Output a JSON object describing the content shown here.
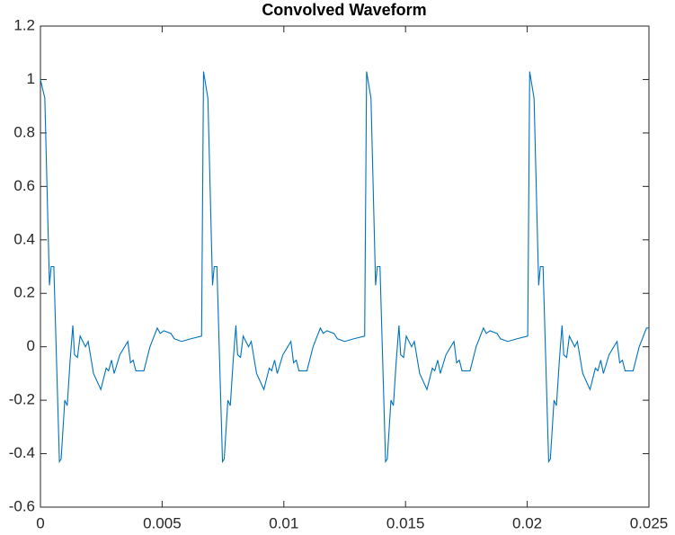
{
  "chart_data": {
    "type": "line",
    "title": "Convolved Waveform",
    "x": [
      0,
      0.00018,
      0.00037,
      0.00044,
      0.00055,
      0.00078,
      0.00085,
      0.001,
      0.0011,
      0.00122,
      0.00133,
      0.0014,
      0.00152,
      0.00163,
      0.00185,
      0.00196,
      0.00218,
      0.00248,
      0.0027,
      0.0028,
      0.00292,
      0.00303,
      0.00326,
      0.00359,
      0.0037,
      0.00381,
      0.00392,
      0.00425,
      0.0045,
      0.0048,
      0.00492,
      0.00507,
      0.00536,
      0.0055,
      0.0058,
      0.00618,
      0.00662,
      0.0067,
      0.00688,
      0.00707,
      0.00714,
      0.00725,
      0.00748,
      0.00755,
      0.0077,
      0.0078,
      0.00792,
      0.00803,
      0.0081,
      0.00822,
      0.00833,
      0.00855,
      0.00866,
      0.00888,
      0.00918,
      0.0094,
      0.0095,
      0.00962,
      0.00973,
      0.00996,
      0.01029,
      0.0104,
      0.01051,
      0.01062,
      0.01095,
      0.0112,
      0.0115,
      0.01162,
      0.01177,
      0.01206,
      0.0122,
      0.0125,
      0.01288,
      0.01332,
      0.0134,
      0.01358,
      0.01377,
      0.01384,
      0.01395,
      0.01418,
      0.01425,
      0.0144,
      0.0145,
      0.01462,
      0.01473,
      0.0148,
      0.01492,
      0.01503,
      0.01525,
      0.01536,
      0.01558,
      0.01588,
      0.0161,
      0.0162,
      0.01632,
      0.01643,
      0.01666,
      0.01699,
      0.0171,
      0.01721,
      0.01732,
      0.01765,
      0.0179,
      0.0182,
      0.01832,
      0.01847,
      0.01876,
      0.0189,
      0.0192,
      0.01958,
      0.02002,
      0.0201,
      0.02028,
      0.02047,
      0.02054,
      0.02065,
      0.02088,
      0.02095,
      0.0211,
      0.0212,
      0.02132,
      0.02143,
      0.0215,
      0.02162,
      0.02173,
      0.02195,
      0.02206,
      0.02228,
      0.02258,
      0.0228,
      0.0229,
      0.02302,
      0.02313,
      0.02336,
      0.02369,
      0.0238,
      0.02391,
      0.02402,
      0.02435,
      0.0246,
      0.0249,
      0.025
    ],
    "series": [
      {
        "color": "#0072bd",
        "values": [
          1.0,
          0.93,
          0.23,
          0.3,
          0.3,
          -0.43,
          -0.42,
          -0.2,
          -0.22,
          -0.05,
          0.08,
          -0.03,
          -0.04,
          0.04,
          0.0,
          0.02,
          -0.1,
          -0.16,
          -0.08,
          -0.09,
          -0.05,
          -0.1,
          -0.03,
          0.02,
          -0.06,
          -0.05,
          -0.09,
          -0.09,
          0.0,
          0.07,
          0.05,
          0.06,
          0.05,
          0.03,
          0.02,
          0.03,
          0.04,
          1.03,
          0.93,
          0.23,
          0.3,
          0.3,
          -0.43,
          -0.42,
          -0.2,
          -0.22,
          -0.05,
          0.08,
          -0.03,
          -0.04,
          0.04,
          0.0,
          0.02,
          -0.1,
          -0.16,
          -0.08,
          -0.09,
          -0.05,
          -0.1,
          -0.03,
          0.02,
          -0.06,
          -0.05,
          -0.09,
          -0.09,
          0.0,
          0.07,
          0.05,
          0.06,
          0.05,
          0.03,
          0.02,
          0.03,
          0.04,
          1.03,
          0.93,
          0.23,
          0.3,
          0.3,
          -0.43,
          -0.42,
          -0.2,
          -0.22,
          -0.05,
          0.08,
          -0.03,
          -0.04,
          0.04,
          0.0,
          0.02,
          -0.1,
          -0.16,
          -0.08,
          -0.09,
          -0.05,
          -0.1,
          -0.03,
          0.02,
          -0.06,
          -0.05,
          -0.09,
          -0.09,
          0.0,
          0.07,
          0.05,
          0.06,
          0.05,
          0.03,
          0.02,
          0.03,
          0.04,
          1.03,
          0.93,
          0.23,
          0.3,
          0.3,
          -0.43,
          -0.42,
          -0.2,
          -0.22,
          -0.05,
          0.08,
          -0.03,
          -0.04,
          0.04,
          0.0,
          0.02,
          -0.1,
          -0.16,
          -0.08,
          -0.09,
          -0.05,
          -0.1,
          -0.03,
          0.02,
          -0.06,
          -0.05,
          -0.09,
          -0.09,
          0.0,
          0.07,
          0.07
        ]
      }
    ],
    "xlim": [
      0,
      0.025
    ],
    "xticks": [
      0,
      0.005,
      0.01,
      0.015,
      0.02,
      0.025
    ],
    "ylim": [
      -0.6,
      1.2
    ],
    "yticks": [
      -0.6,
      -0.4,
      -0.2,
      0,
      0.2,
      0.4,
      0.6,
      0.8,
      1,
      1.2
    ],
    "grid": false
  }
}
